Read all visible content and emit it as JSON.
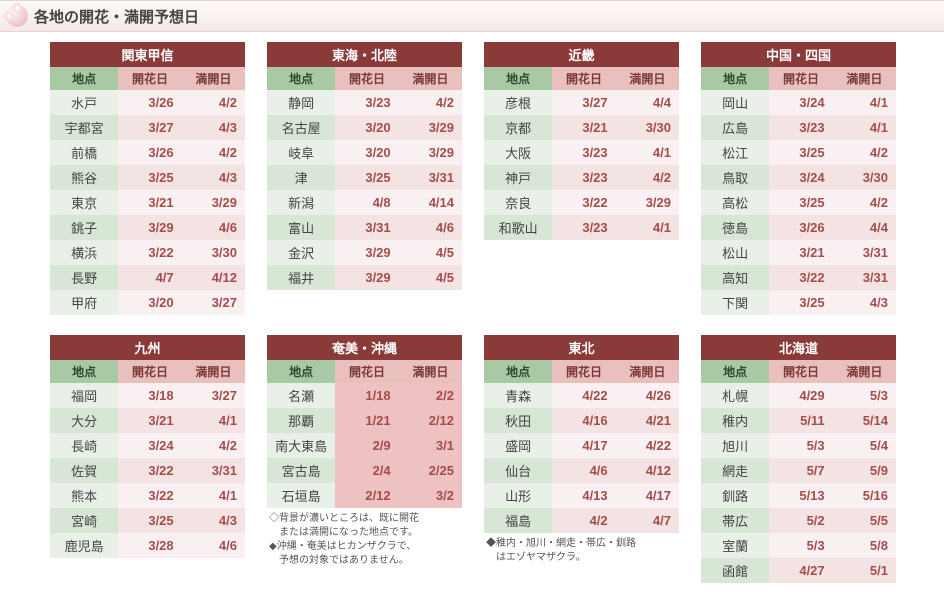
{
  "page_title": "各地の開花・満開予想日",
  "columns": {
    "loc": "地点",
    "bloom": "開花日",
    "full": "満開日"
  },
  "note1_lines": [
    "◇背景が濃いところは、既に開花",
    "　または満開になった地点です。",
    "◆沖縄・奄美はヒカンザクラで、",
    "　予想の対象ではありません。"
  ],
  "note2_lines": [
    "◆稚内・旭川・網走・帯広・釧路",
    "　はエゾヤマザクラ。"
  ],
  "regions": [
    {
      "name": "関東甲信",
      "rows": [
        {
          "loc": "水戸",
          "bloom": "3/26",
          "full": "4/2"
        },
        {
          "loc": "宇都宮",
          "bloom": "3/27",
          "full": "4/3"
        },
        {
          "loc": "前橋",
          "bloom": "3/26",
          "full": "4/2"
        },
        {
          "loc": "熊谷",
          "bloom": "3/25",
          "full": "4/3"
        },
        {
          "loc": "東京",
          "bloom": "3/21",
          "full": "3/29"
        },
        {
          "loc": "銚子",
          "bloom": "3/29",
          "full": "4/6"
        },
        {
          "loc": "横浜",
          "bloom": "3/22",
          "full": "3/30"
        },
        {
          "loc": "長野",
          "bloom": "4/7",
          "full": "4/12"
        },
        {
          "loc": "甲府",
          "bloom": "3/20",
          "full": "3/27"
        }
      ]
    },
    {
      "name": "東海・北陸",
      "rows": [
        {
          "loc": "静岡",
          "bloom": "3/23",
          "full": "4/2"
        },
        {
          "loc": "名古屋",
          "bloom": "3/20",
          "full": "3/29"
        },
        {
          "loc": "岐阜",
          "bloom": "3/20",
          "full": "3/29"
        },
        {
          "loc": "津",
          "bloom": "3/25",
          "full": "3/31"
        },
        {
          "loc": "新潟",
          "bloom": "4/8",
          "full": "4/14"
        },
        {
          "loc": "富山",
          "bloom": "3/31",
          "full": "4/6"
        },
        {
          "loc": "金沢",
          "bloom": "3/29",
          "full": "4/5"
        },
        {
          "loc": "福井",
          "bloom": "3/29",
          "full": "4/5"
        }
      ]
    },
    {
      "name": "近畿",
      "rows": [
        {
          "loc": "彦根",
          "bloom": "3/27",
          "full": "4/4"
        },
        {
          "loc": "京都",
          "bloom": "3/21",
          "full": "3/30"
        },
        {
          "loc": "大阪",
          "bloom": "3/23",
          "full": "4/1"
        },
        {
          "loc": "神戸",
          "bloom": "3/23",
          "full": "4/2"
        },
        {
          "loc": "奈良",
          "bloom": "3/22",
          "full": "3/29"
        },
        {
          "loc": "和歌山",
          "bloom": "3/23",
          "full": "4/1"
        }
      ]
    },
    {
      "name": "中国・四国",
      "rows": [
        {
          "loc": "岡山",
          "bloom": "3/24",
          "full": "4/1"
        },
        {
          "loc": "広島",
          "bloom": "3/23",
          "full": "4/1"
        },
        {
          "loc": "松江",
          "bloom": "3/25",
          "full": "4/2"
        },
        {
          "loc": "鳥取",
          "bloom": "3/24",
          "full": "3/30"
        },
        {
          "loc": "高松",
          "bloom": "3/25",
          "full": "4/2"
        },
        {
          "loc": "徳島",
          "bloom": "3/26",
          "full": "4/4"
        },
        {
          "loc": "松山",
          "bloom": "3/21",
          "full": "3/31"
        },
        {
          "loc": "高知",
          "bloom": "3/22",
          "full": "3/31"
        },
        {
          "loc": "下関",
          "bloom": "3/25",
          "full": "4/3"
        }
      ]
    },
    {
      "name": "九州",
      "rows": [
        {
          "loc": "福岡",
          "bloom": "3/18",
          "full": "3/27"
        },
        {
          "loc": "大分",
          "bloom": "3/21",
          "full": "4/1"
        },
        {
          "loc": "長崎",
          "bloom": "3/24",
          "full": "4/2"
        },
        {
          "loc": "佐賀",
          "bloom": "3/22",
          "full": "3/31"
        },
        {
          "loc": "熊本",
          "bloom": "3/22",
          "full": "4/1"
        },
        {
          "loc": "宮崎",
          "bloom": "3/25",
          "full": "4/3"
        },
        {
          "loc": "鹿児島",
          "bloom": "3/28",
          "full": "4/6"
        }
      ]
    },
    {
      "name": "奄美・沖縄",
      "rows": [
        {
          "loc": "名瀬",
          "bloom": "1/18",
          "full": "2/2",
          "past": true
        },
        {
          "loc": "那覇",
          "bloom": "1/21",
          "full": "2/12",
          "past": true
        },
        {
          "loc": "南大東島",
          "bloom": "2/9",
          "full": "3/1",
          "past": true
        },
        {
          "loc": "宮古島",
          "bloom": "2/4",
          "full": "2/25",
          "past": true
        },
        {
          "loc": "石垣島",
          "bloom": "2/12",
          "full": "3/2",
          "past": true
        }
      ],
      "note": 1
    },
    {
      "name": "東北",
      "rows": [
        {
          "loc": "青森",
          "bloom": "4/22",
          "full": "4/26"
        },
        {
          "loc": "秋田",
          "bloom": "4/16",
          "full": "4/21"
        },
        {
          "loc": "盛岡",
          "bloom": "4/17",
          "full": "4/22"
        },
        {
          "loc": "仙台",
          "bloom": "4/6",
          "full": "4/12"
        },
        {
          "loc": "山形",
          "bloom": "4/13",
          "full": "4/17"
        },
        {
          "loc": "福島",
          "bloom": "4/2",
          "full": "4/7"
        }
      ],
      "note": 2
    },
    {
      "name": "北海道",
      "rows": [
        {
          "loc": "札幌",
          "bloom": "4/29",
          "full": "5/3"
        },
        {
          "loc": "稚内",
          "bloom": "5/11",
          "full": "5/14"
        },
        {
          "loc": "旭川",
          "bloom": "5/3",
          "full": "5/4"
        },
        {
          "loc": "網走",
          "bloom": "5/7",
          "full": "5/9"
        },
        {
          "loc": "釧路",
          "bloom": "5/13",
          "full": "5/16"
        },
        {
          "loc": "帯広",
          "bloom": "5/2",
          "full": "5/5"
        },
        {
          "loc": "室蘭",
          "bloom": "5/3",
          "full": "5/8"
        },
        {
          "loc": "函館",
          "bloom": "4/27",
          "full": "5/1"
        }
      ]
    }
  ]
}
